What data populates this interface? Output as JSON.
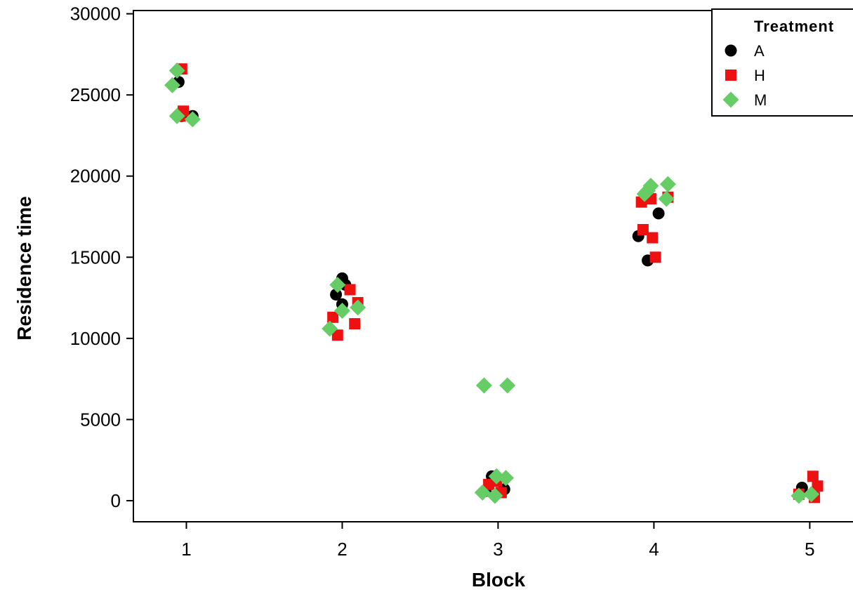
{
  "chart_data": {
    "type": "scatter",
    "title": "",
    "xlabel": "Block",
    "ylabel": "Residence time",
    "xlim": [
      0.66,
      5.3
    ],
    "ylim": [
      -1300,
      30200
    ],
    "xticks": [
      1,
      2,
      3,
      4,
      5
    ],
    "yticks": [
      0,
      5000,
      10000,
      15000,
      20000,
      25000,
      30000
    ],
    "grid": false,
    "legend": {
      "title": "Treatment",
      "position": "top-right"
    },
    "series": [
      {
        "name": "A",
        "marker": "circle",
        "color": "#000000",
        "points": [
          {
            "x": 0.95,
            "y": 25800
          },
          {
            "x": 0.97,
            "y": 23700
          },
          {
            "x": 1.04,
            "y": 23700
          },
          {
            "x": 1.96,
            "y": 12700
          },
          {
            "x": 2.0,
            "y": 13700
          },
          {
            "x": 2.02,
            "y": 13300
          },
          {
            "x": 2.0,
            "y": 12100
          },
          {
            "x": 2.92,
            "y": 600
          },
          {
            "x": 2.96,
            "y": 1500
          },
          {
            "x": 3.04,
            "y": 700
          },
          {
            "x": 3.9,
            "y": 16300
          },
          {
            "x": 3.96,
            "y": 14800
          },
          {
            "x": 4.03,
            "y": 17700
          },
          {
            "x": 4.95,
            "y": 800
          },
          {
            "x": 5.02,
            "y": 400
          }
        ]
      },
      {
        "name": "H",
        "marker": "square",
        "color": "#ee1111",
        "points": [
          {
            "x": 0.97,
            "y": 26600
          },
          {
            "x": 0.96,
            "y": 23700
          },
          {
            "x": 0.98,
            "y": 24000
          },
          {
            "x": 1.94,
            "y": 11300
          },
          {
            "x": 1.97,
            "y": 10200
          },
          {
            "x": 2.05,
            "y": 13000
          },
          {
            "x": 2.1,
            "y": 12200
          },
          {
            "x": 2.08,
            "y": 10900
          },
          {
            "x": 2.94,
            "y": 1000
          },
          {
            "x": 2.99,
            "y": 1200
          },
          {
            "x": 3.02,
            "y": 500
          },
          {
            "x": 3.92,
            "y": 18400
          },
          {
            "x": 3.93,
            "y": 16700
          },
          {
            "x": 3.98,
            "y": 18600
          },
          {
            "x": 3.99,
            "y": 16200
          },
          {
            "x": 4.01,
            "y": 15000
          },
          {
            "x": 4.09,
            "y": 18700
          },
          {
            "x": 4.93,
            "y": 400
          },
          {
            "x": 5.02,
            "y": 1500
          },
          {
            "x": 5.05,
            "y": 900
          },
          {
            "x": 5.03,
            "y": 200
          }
        ]
      },
      {
        "name": "M",
        "marker": "diamond",
        "color": "#66cc66",
        "points": [
          {
            "x": 0.91,
            "y": 25600
          },
          {
            "x": 0.94,
            "y": 26500
          },
          {
            "x": 0.94,
            "y": 23700
          },
          {
            "x": 1.04,
            "y": 23500
          },
          {
            "x": 1.92,
            "y": 10600
          },
          {
            "x": 1.97,
            "y": 13300
          },
          {
            "x": 2.0,
            "y": 11700
          },
          {
            "x": 2.1,
            "y": 11900
          },
          {
            "x": 2.91,
            "y": 7100
          },
          {
            "x": 3.06,
            "y": 7100
          },
          {
            "x": 2.9,
            "y": 500
          },
          {
            "x": 2.98,
            "y": 300
          },
          {
            "x": 2.99,
            "y": 1500
          },
          {
            "x": 3.05,
            "y": 1400
          },
          {
            "x": 3.94,
            "y": 18900
          },
          {
            "x": 3.96,
            "y": 19100
          },
          {
            "x": 3.98,
            "y": 19400
          },
          {
            "x": 4.08,
            "y": 18600
          },
          {
            "x": 4.09,
            "y": 19500
          },
          {
            "x": 4.93,
            "y": 300
          },
          {
            "x": 5.01,
            "y": 400
          }
        ]
      }
    ]
  }
}
